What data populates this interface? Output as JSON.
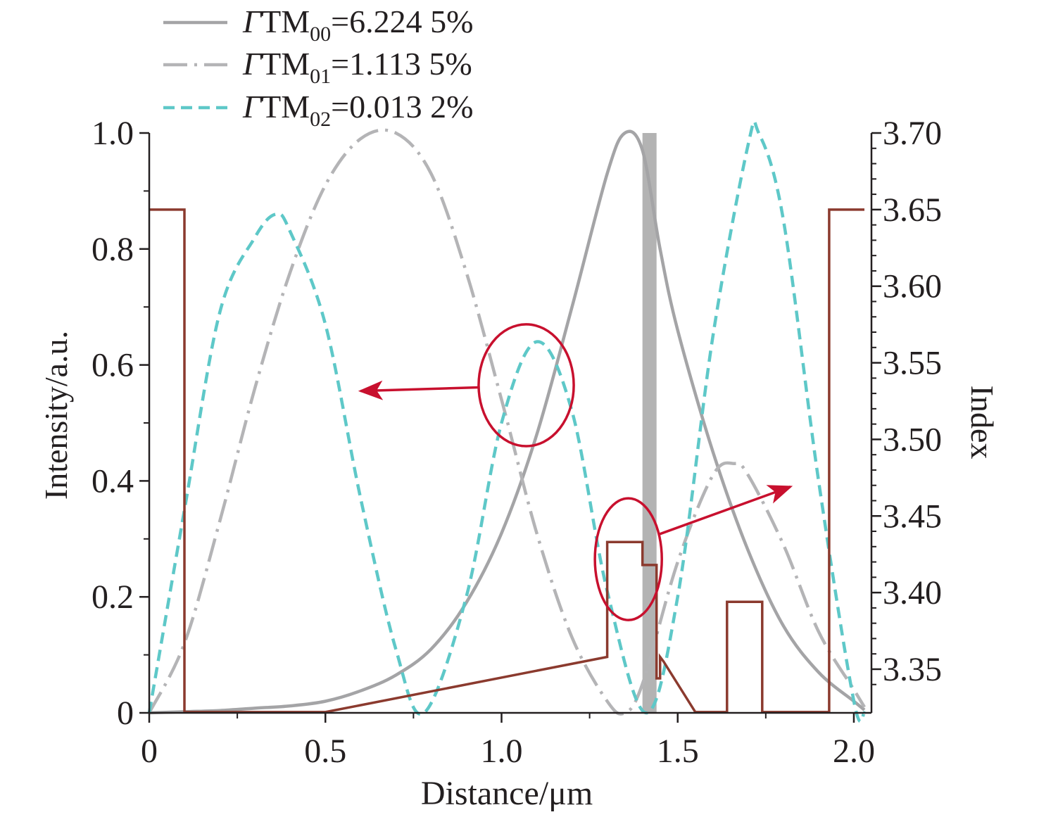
{
  "chart_data": {
    "type": "line",
    "xlabel": "Distance/μm",
    "ylabel": "Intensity/a.u.",
    "y2label": "Index",
    "xlim": [
      0,
      2.05
    ],
    "ylim": [
      0,
      1.0
    ],
    "y2lim": [
      3.3215,
      3.7
    ],
    "xticks": [
      "0",
      "0.5",
      "1.0",
      "1.5",
      "2.0"
    ],
    "xtick_values": [
      0,
      0.5,
      1.0,
      1.5,
      2.0
    ],
    "yticks": [
      "0",
      "0.2",
      "0.4",
      "0.6",
      "0.8",
      "1.0"
    ],
    "ytick_values": [
      0,
      0.2,
      0.4,
      0.6,
      0.8,
      1.0
    ],
    "y2ticks": [
      "3.35",
      "3.40",
      "3.45",
      "3.50",
      "3.55",
      "3.60",
      "3.65",
      "3.70"
    ],
    "y2tick_values": [
      3.35,
      3.4,
      3.45,
      3.5,
      3.55,
      3.6,
      3.65,
      3.7
    ],
    "grid": false,
    "legend_position": "top-left (above plot)",
    "legend": [
      {
        "prefix": "Γ",
        "tm": "TM",
        "sub": "00",
        "value": "=6.224 5%",
        "style": "solid"
      },
      {
        "prefix": "Γ",
        "tm": "TM",
        "sub": "01",
        "value": "=1.113 5%",
        "style": "dash-dot"
      },
      {
        "prefix": "Γ",
        "tm": "TM",
        "sub": "02",
        "value": "=0.013 2%",
        "style": "dashed"
      }
    ],
    "series": [
      {
        "key": "TM00",
        "style": "solid",
        "color": "#a4a4a6",
        "x": [
          0,
          0.1,
          0.2,
          0.3,
          0.4,
          0.5,
          0.6,
          0.7,
          0.8,
          0.9,
          1.0,
          1.1,
          1.2,
          1.3,
          1.35,
          1.4,
          1.45,
          1.5,
          1.6,
          1.7,
          1.8,
          1.9,
          2.0,
          2.03
        ],
        "y": [
          0,
          0.002,
          0.004,
          0.008,
          0.012,
          0.02,
          0.038,
          0.065,
          0.11,
          0.19,
          0.31,
          0.48,
          0.7,
          0.93,
          1.0,
          0.97,
          0.8,
          0.66,
          0.45,
          0.28,
          0.15,
          0.07,
          0.02,
          0.005
        ]
      },
      {
        "key": "TM01",
        "style": "dash-dot",
        "color": "#b4b4b6",
        "x": [
          0,
          0.1,
          0.2,
          0.3,
          0.4,
          0.5,
          0.6,
          0.7,
          0.8,
          0.9,
          1.0,
          1.1,
          1.2,
          1.3,
          1.35,
          1.4,
          1.5,
          1.6,
          1.66,
          1.7,
          1.8,
          1.9,
          2.0,
          2.03
        ],
        "y": [
          0,
          0.12,
          0.33,
          0.56,
          0.76,
          0.91,
          0.99,
          1.0,
          0.93,
          0.76,
          0.54,
          0.31,
          0.13,
          0.02,
          0.0,
          0.05,
          0.26,
          0.41,
          0.43,
          0.41,
          0.29,
          0.14,
          0.04,
          0.01
        ]
      },
      {
        "key": "TM02",
        "style": "dashed",
        "color": "#5ec8c8",
        "x": [
          0,
          0.1,
          0.2,
          0.3,
          0.36,
          0.4,
          0.5,
          0.6,
          0.7,
          0.78,
          0.9,
          1.0,
          1.1,
          1.2,
          1.3,
          1.41,
          1.5,
          1.6,
          1.7,
          1.73,
          1.8,
          1.9,
          2.0,
          2.03
        ],
        "y": [
          0,
          0.35,
          0.69,
          0.82,
          0.86,
          0.83,
          0.67,
          0.37,
          0.11,
          0.0,
          0.2,
          0.5,
          0.64,
          0.52,
          0.21,
          0.0,
          0.2,
          0.65,
          0.98,
          1.0,
          0.85,
          0.4,
          0.02,
          0.0
        ]
      }
    ],
    "index_profile": {
      "key": "index",
      "color": "#8b3a2e",
      "x": [
        0,
        0.1,
        0.1,
        0.5,
        1.3,
        1.3,
        1.4,
        1.4,
        1.44,
        1.44,
        1.45,
        1.45,
        1.46,
        1.55,
        1.64,
        1.64,
        1.74,
        1.74,
        1.93,
        1.93,
        2.03
      ],
      "y": [
        3.65,
        3.65,
        3.322,
        3.322,
        3.358,
        3.433,
        3.433,
        3.418,
        3.418,
        3.344,
        3.344,
        3.358,
        3.355,
        3.322,
        3.322,
        3.394,
        3.394,
        3.322,
        3.322,
        3.65,
        3.65
      ]
    },
    "shaded_band": {
      "x": [
        1.4,
        1.44
      ],
      "color": "#b3b3b3"
    },
    "annotations": [
      {
        "type": "ellipse",
        "cx": 1.07,
        "cy": 0.565,
        "rx": 0.135,
        "ry": 0.105,
        "arrow_to": [
          0.6,
          0.555
        ]
      },
      {
        "type": "ellipse",
        "cx": 1.36,
        "cy": 0.265,
        "rx": 0.095,
        "ry": 0.105,
        "arrow_to": [
          1.82,
          0.39
        ]
      }
    ],
    "annotation_color": "#c8102e"
  }
}
